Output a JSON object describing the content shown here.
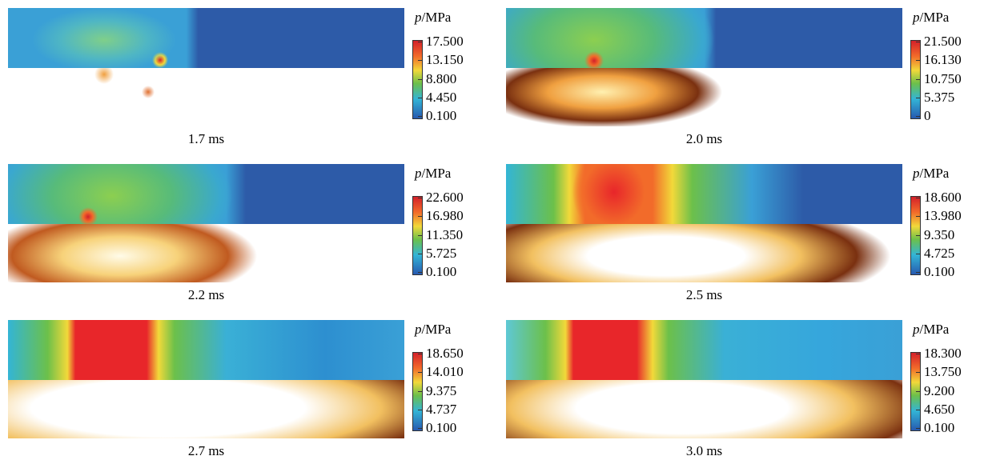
{
  "panels": [
    {
      "legend": {
        "symbol": "p",
        "unit": "/MPa"
      },
      "ticks": [
        "17.500",
        "13.150",
        "8.800",
        "4.450",
        "0.100"
      ],
      "caption": "1.7 ms"
    },
    {
      "legend": {
        "symbol": "p",
        "unit": "/MPa"
      },
      "ticks": [
        "21.500",
        "16.130",
        "10.750",
        "5.375",
        "0"
      ],
      "caption": "2.0 ms"
    },
    {
      "legend": {
        "symbol": "p",
        "unit": "/MPa"
      },
      "ticks": [
        "22.600",
        "16.980",
        "11.350",
        "5.725",
        "0.100"
      ],
      "caption": "2.2 ms"
    },
    {
      "legend": {
        "symbol": "p",
        "unit": "/MPa"
      },
      "ticks": [
        "18.600",
        "13.980",
        "9.350",
        "4.725",
        "0.100"
      ],
      "caption": "2.5 ms"
    },
    {
      "legend": {
        "symbol": "p",
        "unit": "/MPa"
      },
      "ticks": [
        "18.650",
        "14.010",
        "9.375",
        "4.737",
        "0.100"
      ],
      "caption": "2.7 ms"
    },
    {
      "legend": {
        "symbol": "p",
        "unit": "/MPa"
      },
      "ticks": [
        "18.300",
        "13.750",
        "9.200",
        "4.650",
        "0.100"
      ],
      "caption": "3.0 ms"
    }
  ]
}
